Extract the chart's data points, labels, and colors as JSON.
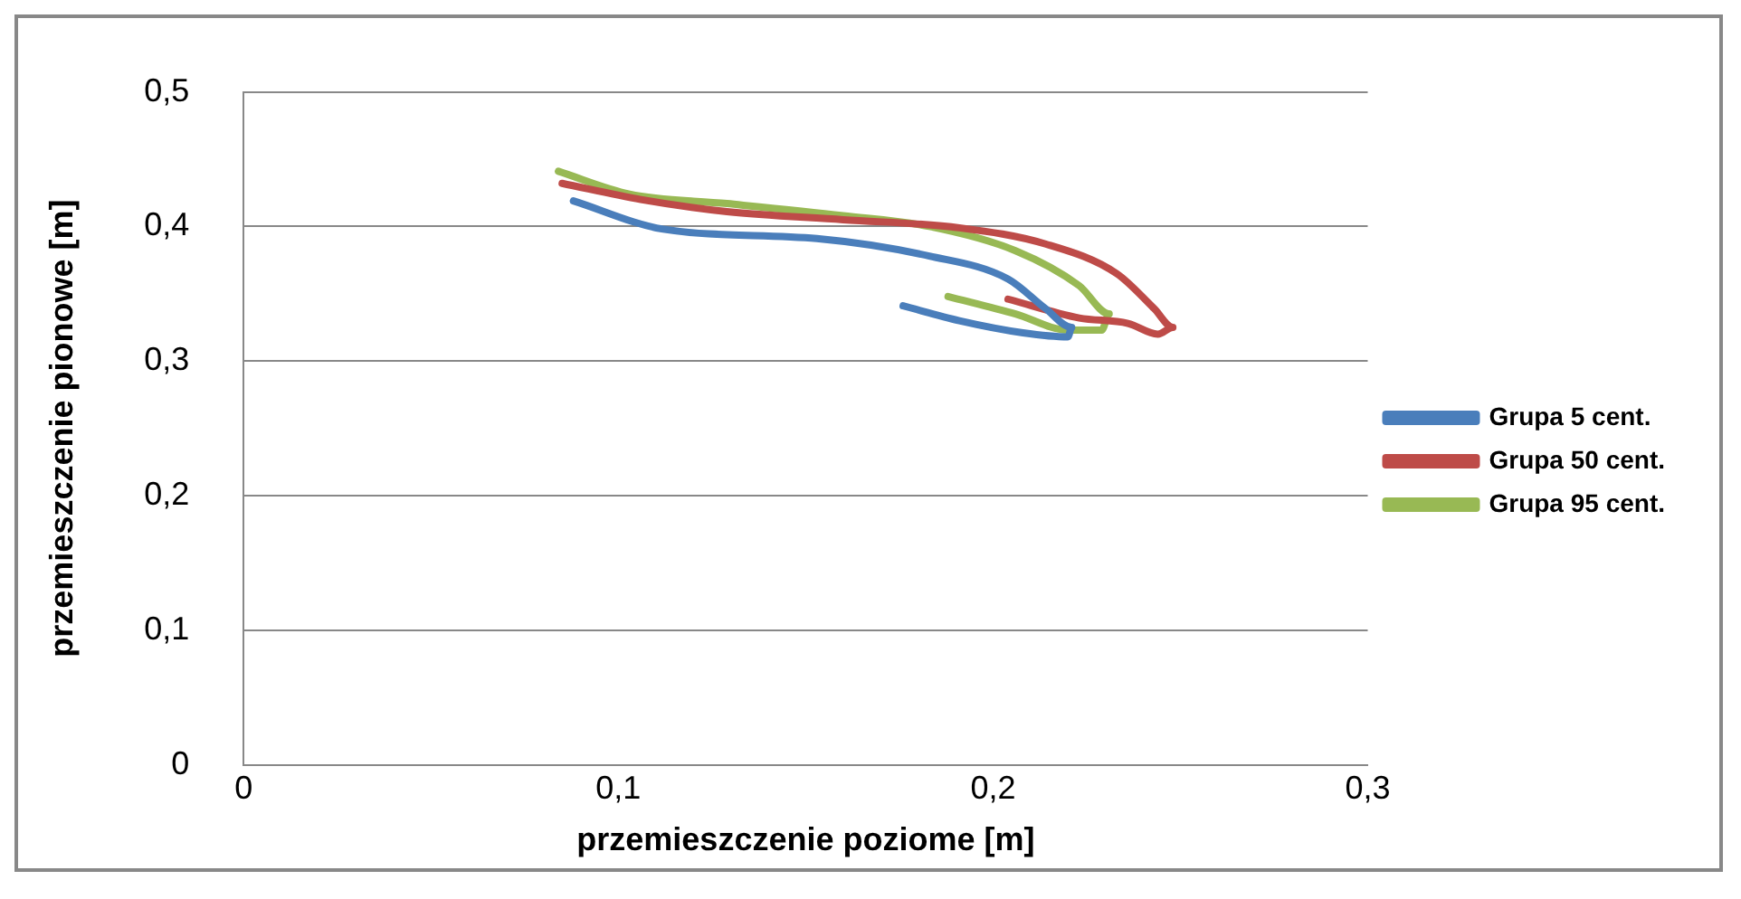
{
  "chart_data": {
    "type": "line",
    "xlabel": "przemieszczenie poziome [m]",
    "ylabel": "przemieszczenie pionowe [m]",
    "xlim": [
      0,
      0.3
    ],
    "xticks": [
      {
        "value": 0,
        "label": "0"
      },
      {
        "value": 0.1,
        "label": "0,1"
      },
      {
        "value": 0.2,
        "label": "0,2"
      },
      {
        "value": 0.3,
        "label": "0,3"
      }
    ],
    "ylim": [
      0,
      0.5
    ],
    "yticks": [
      {
        "value": 0,
        "label": "0"
      },
      {
        "value": 0.1,
        "label": "0,1"
      },
      {
        "value": 0.2,
        "label": "0,2"
      },
      {
        "value": 0.3,
        "label": "0,3"
      },
      {
        "value": 0.4,
        "label": "0,4"
      },
      {
        "value": 0.5,
        "label": "0,5"
      }
    ],
    "grid": "y",
    "legend": "right",
    "marker": "none",
    "line_style": "solid",
    "series": [
      {
        "name": "Grupa 5 cent.",
        "color": "#4a7ebb",
        "x": [
          0.088,
          0.112,
          0.153,
          0.183,
          0.204,
          0.214,
          0.221,
          0.22,
          0.208,
          0.191,
          0.176
        ],
        "values": [
          0.419,
          0.398,
          0.391,
          0.378,
          0.361,
          0.339,
          0.325,
          0.318,
          0.321,
          0.33,
          0.341
        ]
      },
      {
        "name": "Grupa 50 cent.",
        "color": "#be4b48",
        "x": [
          0.085,
          0.106,
          0.129,
          0.16,
          0.191,
          0.214,
          0.233,
          0.243,
          0.248,
          0.244,
          0.236,
          0.223,
          0.204
        ],
        "values": [
          0.432,
          0.42,
          0.411,
          0.405,
          0.399,
          0.387,
          0.365,
          0.339,
          0.325,
          0.32,
          0.328,
          0.332,
          0.346
        ]
      },
      {
        "name": "Grupa 95 cent.",
        "color": "#98b954",
        "x": [
          0.084,
          0.103,
          0.129,
          0.16,
          0.183,
          0.206,
          0.223,
          0.231,
          0.229,
          0.22,
          0.206,
          0.188
        ],
        "values": [
          0.441,
          0.424,
          0.417,
          0.408,
          0.4,
          0.382,
          0.356,
          0.335,
          0.323,
          0.323,
          0.335,
          0.348
        ]
      }
    ]
  }
}
